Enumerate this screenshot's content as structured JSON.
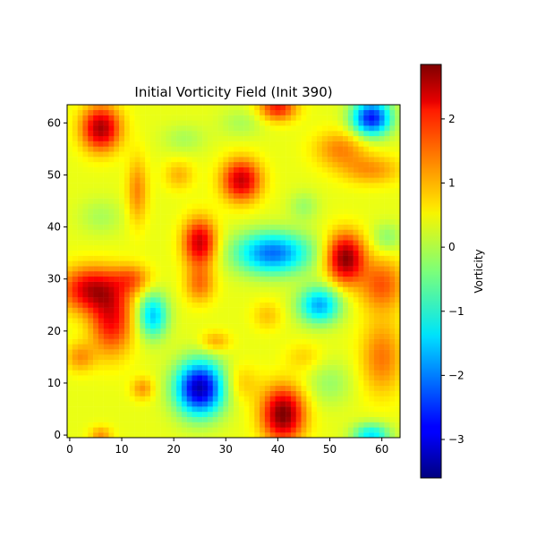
{
  "chart_data": {
    "type": "heatmap",
    "title": "Initial Vorticity Field (Init 390)",
    "xlabel": "",
    "ylabel": "",
    "grid_size": 64,
    "xlim": [
      -0.5,
      63.5
    ],
    "ylim": [
      -0.5,
      63.5
    ],
    "origin": "lower",
    "xticks": [
      0,
      10,
      20,
      30,
      40,
      50,
      60
    ],
    "yticks": [
      0,
      10,
      20,
      30,
      40,
      50,
      60
    ],
    "colormap": "jet",
    "colorbar": {
      "label": "Vorticity",
      "vmin": -3.6,
      "vmax": 2.85,
      "ticks": [
        -3,
        -2,
        -1,
        0,
        1,
        2
      ]
    },
    "background_value": 0.3,
    "features": [
      {
        "x": 6,
        "y": 59,
        "amplitude": 2.3,
        "sx": 2.6,
        "sy": 3.0
      },
      {
        "x": 40,
        "y": 63,
        "amplitude": 1.6,
        "sx": 2.5,
        "sy": 1.8
      },
      {
        "x": 58,
        "y": 61,
        "amplitude": -3.0,
        "sx": 2.6,
        "sy": 2.4
      },
      {
        "x": 52,
        "y": 55,
        "amplitude": 0.9,
        "sx": 3.5,
        "sy": 2.5
      },
      {
        "x": 58,
        "y": 51,
        "amplitude": 0.8,
        "sx": 4.0,
        "sy": 2.0
      },
      {
        "x": 33,
        "y": 49,
        "amplitude": 2.1,
        "sx": 2.6,
        "sy": 2.8
      },
      {
        "x": 21,
        "y": 50,
        "amplitude": 0.6,
        "sx": 2.0,
        "sy": 2.0
      },
      {
        "x": 13,
        "y": 47,
        "amplitude": 0.9,
        "sx": 1.4,
        "sy": 4.5
      },
      {
        "x": 45,
        "y": 44,
        "amplitude": -0.5,
        "sx": 2.0,
        "sy": 2.0
      },
      {
        "x": 25,
        "y": 37,
        "amplitude": 2.1,
        "sx": 2.2,
        "sy": 3.2
      },
      {
        "x": 25,
        "y": 29,
        "amplitude": 1.0,
        "sx": 2.0,
        "sy": 2.5
      },
      {
        "x": 39,
        "y": 35,
        "amplitude": -2.4,
        "sx": 5.0,
        "sy": 2.8
      },
      {
        "x": 53,
        "y": 34,
        "amplitude": 2.5,
        "sx": 2.5,
        "sy": 3.3
      },
      {
        "x": 60,
        "y": 29,
        "amplitude": 1.2,
        "sx": 3.0,
        "sy": 3.5
      },
      {
        "x": 61,
        "y": 38,
        "amplitude": -0.6,
        "sx": 2.0,
        "sy": 2.0
      },
      {
        "x": 4,
        "y": 28,
        "amplitude": 2.0,
        "sx": 4.0,
        "sy": 3.0
      },
      {
        "x": 8,
        "y": 22,
        "amplitude": 1.7,
        "sx": 2.8,
        "sy": 4.5
      },
      {
        "x": 12,
        "y": 30,
        "amplitude": 1.0,
        "sx": 2.5,
        "sy": 2.0
      },
      {
        "x": 16,
        "y": 23,
        "amplitude": -1.8,
        "sx": 2.0,
        "sy": 3.0
      },
      {
        "x": 48,
        "y": 25,
        "amplitude": -2.0,
        "sx": 2.8,
        "sy": 2.5
      },
      {
        "x": 38,
        "y": 23,
        "amplitude": 0.5,
        "sx": 2.0,
        "sy": 2.0
      },
      {
        "x": 28,
        "y": 18,
        "amplitude": 0.7,
        "sx": 2.0,
        "sy": 1.4
      },
      {
        "x": 60,
        "y": 15,
        "amplitude": 1.0,
        "sx": 2.8,
        "sy": 5.0
      },
      {
        "x": 25,
        "y": 9,
        "amplitude": -3.6,
        "sx": 3.2,
        "sy": 3.6
      },
      {
        "x": 41,
        "y": 4,
        "amplitude": 2.6,
        "sx": 2.8,
        "sy": 3.6
      },
      {
        "x": 58,
        "y": 0,
        "amplitude": -1.6,
        "sx": 2.5,
        "sy": 1.6
      },
      {
        "x": 14,
        "y": 9,
        "amplitude": 0.8,
        "sx": 1.5,
        "sy": 1.5
      },
      {
        "x": 6,
        "y": 0,
        "amplitude": 0.8,
        "sx": 1.5,
        "sy": 1.2
      },
      {
        "x": 2,
        "y": 15,
        "amplitude": 0.8,
        "sx": 2.0,
        "sy": 2.0
      },
      {
        "x": 33,
        "y": 60,
        "amplitude": -0.4,
        "sx": 3.0,
        "sy": 2.0
      },
      {
        "x": 50,
        "y": 10,
        "amplitude": -0.5,
        "sx": 3.0,
        "sy": 3.0
      },
      {
        "x": 45,
        "y": 15,
        "amplitude": 0.4,
        "sx": 2.5,
        "sy": 2.0
      },
      {
        "x": 6,
        "y": 42,
        "amplitude": -0.4,
        "sx": 3.0,
        "sy": 2.5
      },
      {
        "x": 33,
        "y": 10,
        "amplitude": 0.5,
        "sx": 2.5,
        "sy": 2.5
      },
      {
        "x": 22,
        "y": 57,
        "amplitude": -0.4,
        "sx": 3.0,
        "sy": 2.0
      }
    ]
  }
}
